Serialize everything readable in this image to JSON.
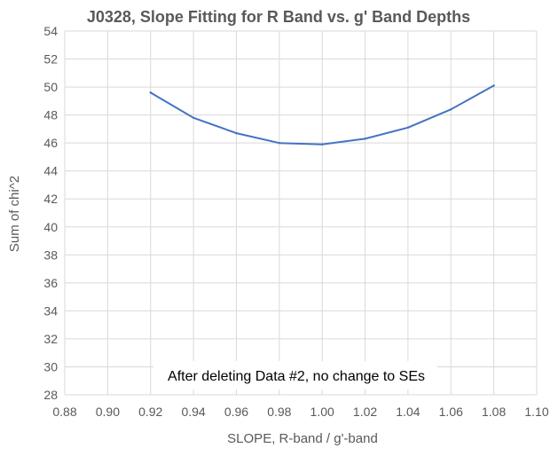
{
  "chart_data": {
    "type": "line",
    "title": "J0328, Slope Fitting for R Band vs. g' Band Depths",
    "xlabel": "SLOPE, R-band / g'-band",
    "ylabel": "Sum of chi^2",
    "xlim": [
      0.88,
      1.1
    ],
    "ylim": [
      28,
      54
    ],
    "xticks": [
      "0.88",
      "0.90",
      "0.92",
      "0.94",
      "0.96",
      "0.98",
      "1.00",
      "1.02",
      "1.04",
      "1.06",
      "1.08",
      "1.10"
    ],
    "yticks": [
      "28",
      "30",
      "32",
      "34",
      "36",
      "38",
      "40",
      "42",
      "44",
      "46",
      "48",
      "50",
      "52",
      "54"
    ],
    "grid": true,
    "series": [
      {
        "color": "#4472C4",
        "x": [
          0.92,
          0.94,
          0.96,
          0.98,
          1.0,
          1.02,
          1.04,
          1.06,
          1.08
        ],
        "y": [
          49.6,
          47.8,
          46.7,
          46.0,
          45.9,
          46.3,
          47.1,
          48.4,
          50.1
        ]
      }
    ],
    "annotation": "After deleting Data #2, no change to SEs"
  }
}
